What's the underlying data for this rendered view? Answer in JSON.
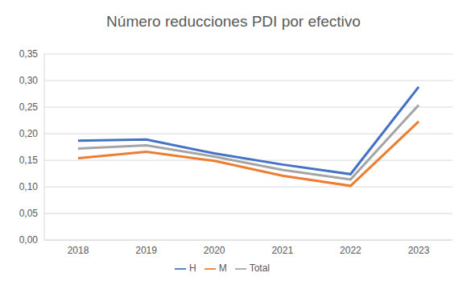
{
  "chart_data": {
    "type": "line",
    "title": "Número reducciones PDI por efectivo",
    "categories": [
      "2018",
      "2019",
      "2020",
      "2021",
      "2022",
      "2023"
    ],
    "series": [
      {
        "name": "H",
        "color": "#4472c4",
        "values": [
          0.187,
          0.189,
          0.163,
          0.142,
          0.124,
          0.288
        ]
      },
      {
        "name": "M",
        "color": "#ed7d31",
        "values": [
          0.154,
          0.166,
          0.149,
          0.121,
          0.102,
          0.223
        ]
      },
      {
        "name": "Total",
        "color": "#a5a5a5",
        "values": [
          0.172,
          0.178,
          0.157,
          0.132,
          0.114,
          0.254
        ]
      }
    ],
    "ylim": [
      0,
      0.35
    ],
    "yticks": [
      {
        "value": 0,
        "label": "0,00"
      },
      {
        "value": 0.05,
        "label": "0,05"
      },
      {
        "value": 0.1,
        "label": "0,10"
      },
      {
        "value": 0.15,
        "label": "0,15"
      },
      {
        "value": 0.2,
        "label": "0,20"
      },
      {
        "value": 0.25,
        "label": "0,25"
      },
      {
        "value": 0.3,
        "label": "0,30"
      },
      {
        "value": 0.35,
        "label": "0,35"
      }
    ],
    "grid": true,
    "legend": "bottom"
  }
}
